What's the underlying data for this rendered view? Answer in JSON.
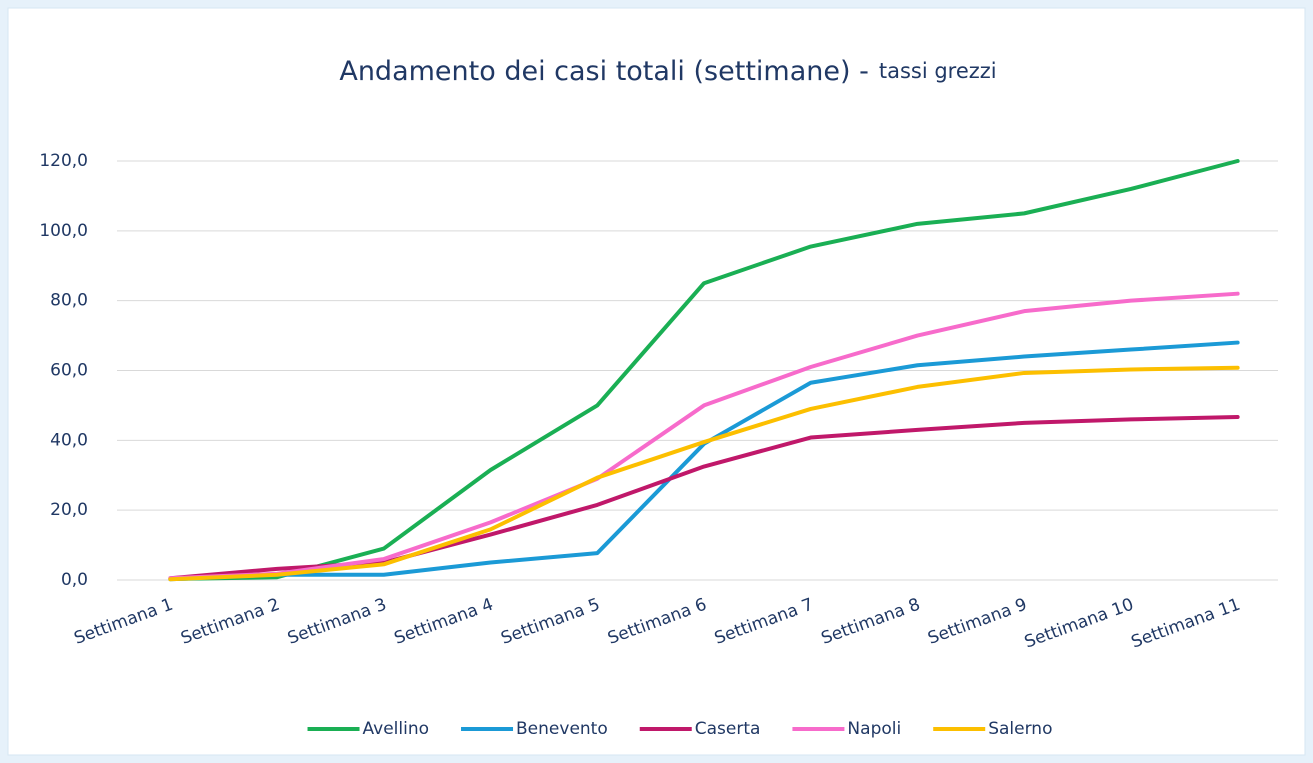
{
  "chart_data": {
    "type": "line",
    "title": "Andamento dei casi totali (settimane) -",
    "subtitle": "tassi grezzi",
    "categories": [
      "Settimana 1",
      "Settimana 2",
      "Settimana 3",
      "Settimana 4",
      "Settimana 5",
      "Settimana 6",
      "Settimana 7",
      "Settimana 8",
      "Settimana 9",
      "Settimana 10",
      "Settimana 11"
    ],
    "series": [
      {
        "name": "Avellino",
        "color": "#1aaf54",
        "values": [
          0.3,
          0.8,
          9,
          31.5,
          50,
          85,
          95.5,
          102,
          105,
          112,
          120
        ]
      },
      {
        "name": "Benevento",
        "color": "#1b9ad6",
        "values": [
          0.2,
          1.5,
          1.5,
          5,
          7.7,
          39,
          56.5,
          61.5,
          64,
          66,
          68
        ]
      },
      {
        "name": "Caserta",
        "color": "#c0186a",
        "values": [
          0.5,
          3.2,
          5,
          13,
          21.5,
          32.5,
          40.8,
          43,
          45,
          46,
          46.7
        ]
      },
      {
        "name": "Napoli",
        "color": "#f76bcb",
        "values": [
          0.5,
          1.8,
          6,
          16.5,
          29,
          50,
          61,
          70,
          77,
          80,
          82
        ]
      },
      {
        "name": "Salerno",
        "color": "#fcbf00",
        "values": [
          0.2,
          1.5,
          4.5,
          14.5,
          29.3,
          39.5,
          49,
          55.3,
          59.3,
          60.3,
          60.8
        ]
      }
    ],
    "ylim": [
      0,
      120
    ],
    "yticks": [
      {
        "value": 0,
        "label": "0,0"
      },
      {
        "value": 20,
        "label": "20,0"
      },
      {
        "value": 40,
        "label": "40,0"
      },
      {
        "value": 60,
        "label": "60,0"
      },
      {
        "value": 80,
        "label": "80,0"
      },
      {
        "value": 100,
        "label": "100,0"
      },
      {
        "value": 120,
        "label": "120,0"
      }
    ],
    "grid": true,
    "legend": "bottom"
  }
}
